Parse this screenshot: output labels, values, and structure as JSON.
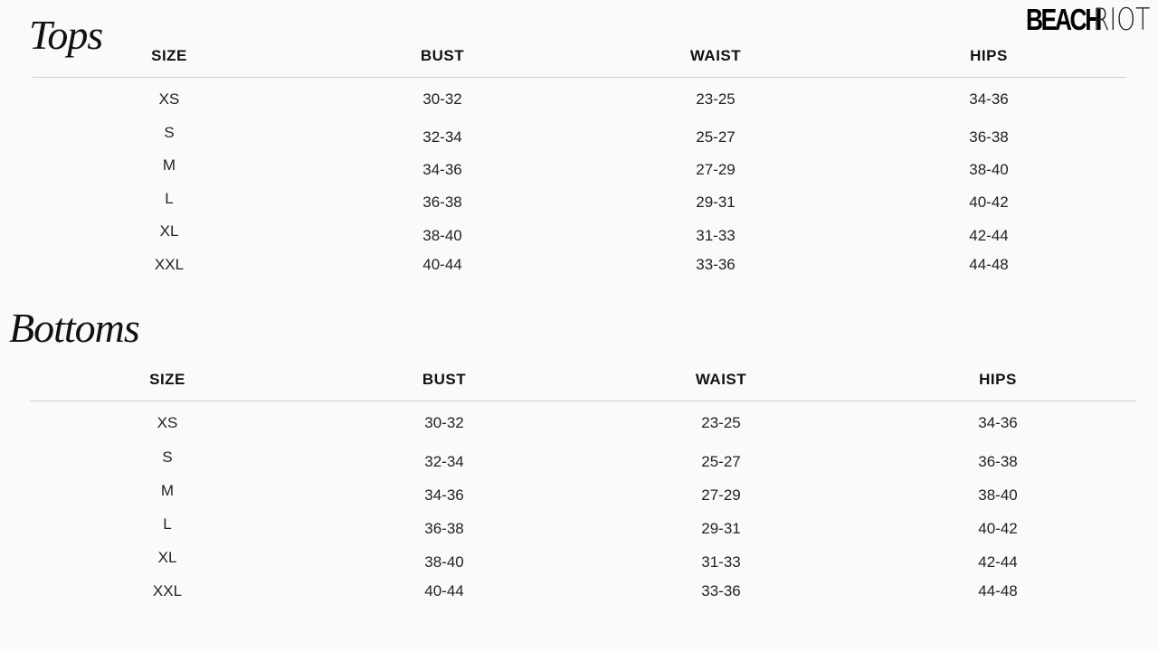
{
  "brand": {
    "logo_text_bold": "BEACH",
    "logo_text_light": "RIOT"
  },
  "tables": [
    {
      "title": "Tops",
      "headers": [
        "SIZE",
        "BUST",
        "WAIST",
        "HIPS"
      ],
      "rows": [
        [
          "XS",
          "30-32",
          "23-25",
          "34-36"
        ],
        [
          "S",
          "32-34",
          "25-27",
          "36-38"
        ],
        [
          "M",
          "34-36",
          "27-29",
          "38-40"
        ],
        [
          "L",
          "36-38",
          "29-31",
          "40-42"
        ],
        [
          "XL",
          "38-40",
          "31-33",
          "42-44"
        ],
        [
          "XXL",
          "40-44",
          "33-36",
          "44-48"
        ]
      ]
    },
    {
      "title": "Bottoms",
      "headers": [
        "SIZE",
        "BUST",
        "WAIST",
        "HIPS"
      ],
      "rows": [
        [
          "XS",
          "30-32",
          "23-25",
          "34-36"
        ],
        [
          "S",
          "32-34",
          "25-27",
          "36-38"
        ],
        [
          "M",
          "34-36",
          "27-29",
          "38-40"
        ],
        [
          "L",
          "36-38",
          "29-31",
          "40-42"
        ],
        [
          "XL",
          "38-40",
          "31-33",
          "42-44"
        ],
        [
          "XXL",
          "40-44",
          "33-36",
          "44-48"
        ]
      ]
    }
  ]
}
